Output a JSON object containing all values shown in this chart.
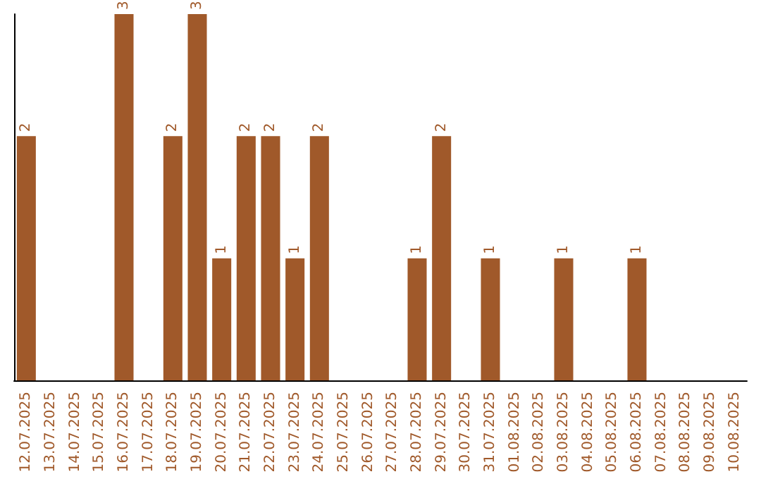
{
  "chart_data": {
    "type": "bar",
    "categories": [
      "12.07.2025",
      "13.07.2025",
      "14.07.2025",
      "15.07.2025",
      "16.07.2025",
      "17.07.2025",
      "18.07.2025",
      "19.07.2025",
      "20.07.2025",
      "21.07.2025",
      "22.07.2025",
      "23.07.2025",
      "24.07.2025",
      "25.07.2025",
      "26.07.2025",
      "27.07.2025",
      "28.07.2025",
      "29.07.2025",
      "30.07.2025",
      "31.07.2025",
      "01.08.2025",
      "02.08.2025",
      "03.08.2025",
      "04.08.2025",
      "05.08.2025",
      "06.08.2025",
      "07.08.2025",
      "08.08.2025",
      "09.08.2025",
      "10.08.2025"
    ],
    "values": [
      2,
      0,
      0,
      0,
      3,
      0,
      2,
      3,
      1,
      2,
      2,
      1,
      2,
      0,
      0,
      0,
      1,
      2,
      0,
      1,
      0,
      0,
      1,
      0,
      0,
      1,
      0,
      0,
      0,
      0
    ],
    "value_labels": [
      "2",
      null,
      null,
      null,
      "3",
      null,
      "2",
      "3",
      "1",
      "2",
      "2",
      "1",
      "2",
      null,
      null,
      null,
      "1",
      "2",
      null,
      "1",
      null,
      null,
      "1",
      null,
      null,
      "1",
      null,
      null,
      null,
      null
    ],
    "color": "#a0592a"
  }
}
